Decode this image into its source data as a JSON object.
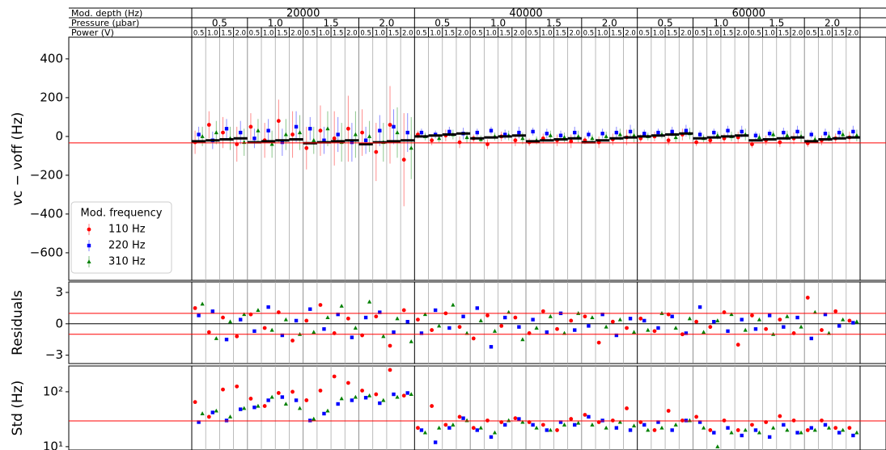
{
  "header": {
    "row_labels": [
      "Mod. depth (Hz)",
      "Pressure (µbar)",
      "Power (V)"
    ],
    "depths": [
      "20000",
      "40000",
      "60000"
    ],
    "pressures": [
      "0.5",
      "1.0",
      "1.5",
      "2.0"
    ],
    "powers": [
      "0.5",
      "1.0",
      "1.5",
      "2.0"
    ]
  },
  "chart_data": [
    {
      "type": "scatter",
      "ylabel": "νc − νoff (Hz)",
      "ylim": [
        -742,
        512
      ],
      "yticks": [
        {
          "value": -600,
          "label": "−600"
        },
        {
          "value": -400,
          "label": "−400"
        },
        {
          "value": -200,
          "label": "−200"
        },
        0,
        200,
        400
      ],
      "ref_line": -33,
      "ref_color": "#ff0000",
      "legend_title": "Mod. frequency",
      "legend": "lower left",
      "series": [
        {
          "name": "110 Hz",
          "color": "#ff0000",
          "marker": "circle",
          "values": [
            -30,
            60,
            20,
            -40,
            50,
            -20,
            80,
            10,
            -60,
            30,
            -10,
            40,
            20,
            -80,
            60,
            -120,
            10,
            -20,
            5,
            -30,
            -10,
            -40,
            0,
            -20,
            -30,
            -10,
            -20,
            -25,
            -20,
            -30,
            -15,
            -5,
            -10,
            0,
            -20,
            10,
            -30,
            -20,
            -10,
            -5,
            -40,
            -20,
            -30,
            -10,
            -35,
            -20,
            -10,
            -5
          ],
          "errors": [
            60,
            70,
            80,
            90,
            70,
            90,
            110,
            120,
            110,
            130,
            140,
            170,
            120,
            150,
            200,
            240,
            20,
            25,
            30,
            30,
            20,
            25,
            25,
            30,
            20,
            25,
            30,
            35,
            20,
            30,
            30,
            40,
            20,
            25,
            25,
            30,
            20,
            20,
            25,
            30,
            20,
            25,
            25,
            30,
            20,
            25,
            25,
            30
          ]
        },
        {
          "name": "220 Hz",
          "color": "#0000ff",
          "marker": "square",
          "values": [
            10,
            -20,
            40,
            20,
            -10,
            30,
            -30,
            50,
            40,
            -20,
            10,
            -30,
            -20,
            30,
            50,
            20,
            20,
            10,
            25,
            15,
            20,
            30,
            10,
            20,
            25,
            15,
            5,
            20,
            10,
            15,
            20,
            25,
            15,
            20,
            25,
            30,
            10,
            20,
            30,
            25,
            5,
            15,
            20,
            25,
            10,
            15,
            20,
            25
          ],
          "errors": [
            40,
            45,
            50,
            60,
            50,
            60,
            70,
            80,
            60,
            70,
            90,
            100,
            70,
            80,
            90,
            100,
            20,
            20,
            25,
            30,
            20,
            20,
            25,
            30,
            20,
            25,
            25,
            30,
            20,
            25,
            30,
            35,
            20,
            20,
            25,
            30,
            20,
            20,
            25,
            30,
            20,
            20,
            25,
            30,
            20,
            25,
            25,
            30
          ]
        },
        {
          "name": "310 Hz",
          "color": "#008000",
          "marker": "triangle",
          "values": [
            0,
            20,
            -10,
            -30,
            30,
            -40,
            10,
            20,
            -20,
            40,
            -30,
            10,
            0,
            -30,
            20,
            -60,
            0,
            -10,
            10,
            -5,
            -15,
            0,
            5,
            -10,
            -20,
            5,
            -5,
            0,
            -10,
            0,
            10,
            5,
            0,
            10,
            -5,
            15,
            -10,
            5,
            0,
            10,
            -5,
            10,
            5,
            0,
            -15,
            0,
            10,
            5
          ],
          "errors": [
            50,
            60,
            60,
            70,
            60,
            70,
            80,
            90,
            70,
            90,
            100,
            120,
            80,
            100,
            130,
            160,
            20,
            20,
            25,
            30,
            20,
            20,
            25,
            30,
            20,
            25,
            25,
            30,
            20,
            25,
            30,
            35,
            20,
            20,
            25,
            30,
            20,
            20,
            25,
            30,
            20,
            20,
            25,
            30,
            20,
            25,
            25,
            30
          ]
        }
      ],
      "fit": [
        -25,
        -20,
        -15,
        -10,
        -30,
        -25,
        -20,
        -15,
        -35,
        -30,
        -25,
        -20,
        -40,
        -30,
        -25,
        -20,
        0,
        5,
        10,
        15,
        -10,
        -5,
        0,
        5,
        -25,
        -20,
        -15,
        -10,
        -30,
        -20,
        -10,
        -5,
        0,
        5,
        10,
        15,
        -10,
        -5,
        0,
        5,
        -20,
        -15,
        -10,
        -5,
        -25,
        -15,
        -10,
        -5
      ]
    },
    {
      "type": "scatter",
      "ylabel": "Residuals",
      "ylim": [
        -3.8,
        4
      ],
      "yticks": [
        {
          "value": -3,
          "label": "−3"
        },
        0,
        3
      ],
      "zero_line": 0,
      "ref_lines": [
        -1,
        1
      ],
      "ref_color": "#ff0000",
      "series": [
        {
          "color": "#ff0000",
          "marker": "circle",
          "values": [
            1.5,
            -0.8,
            0.6,
            -1.2,
            0.9,
            -0.4,
            1.1,
            -1.6,
            0.3,
            1.8,
            -0.9,
            0.5,
            -1.1,
            0.7,
            -2.1,
            1.3,
            0.4,
            -0.6,
            1.0,
            -0.3,
            -1.4,
            0.8,
            -0.2,
            0.6,
            -0.9,
            1.2,
            -0.5,
            0.3,
            0.7,
            -1.8,
            0.2,
            -0.4,
            0.5,
            -0.7,
            0.9,
            -1.0,
            0.2,
            -0.3,
            1.1,
            -2.0,
            0.8,
            -0.5,
            0.4,
            -0.9,
            2.5,
            -0.6,
            1.2,
            0.3
          ]
        },
        {
          "color": "#0000ff",
          "marker": "square",
          "values": [
            0.8,
            1.2,
            -1.5,
            0.4,
            -0.7,
            1.6,
            -1.1,
            0.3,
            1.4,
            -0.5,
            0.9,
            -1.3,
            0.6,
            1.1,
            -0.8,
            0.2,
            -0.9,
            1.3,
            -0.4,
            0.7,
            1.5,
            -2.2,
            0.6,
            -0.3,
            0.4,
            -0.8,
            1.0,
            -0.6,
            -0.2,
            0.9,
            -1.1,
            0.5,
            0.3,
            -0.4,
            0.7,
            -0.9,
            1.6,
            0.2,
            -0.7,
            0.4,
            -0.5,
            0.8,
            -0.3,
            0.6,
            -1.4,
            0.9,
            -0.2,
            0.1
          ]
        },
        {
          "color": "#008000",
          "marker": "triangle",
          "values": [
            1.9,
            -1.4,
            0.2,
            0.9,
            1.3,
            -0.6,
            0.4,
            -1.0,
            -0.8,
            0.6,
            1.7,
            -0.4,
            2.1,
            -1.2,
            0.5,
            -1.7,
            0.9,
            -0.2,
            1.8,
            -0.9,
            0.3,
            -0.7,
            1.1,
            -1.5,
            -0.4,
            0.7,
            -0.9,
            1.0,
            0.6,
            -0.3,
            0.4,
            -0.8,
            -0.6,
            1.0,
            -0.4,
            0.5,
            -0.8,
            0.3,
            0.9,
            -0.6,
            0.4,
            -1.0,
            0.7,
            -0.3,
            1.1,
            -0.9,
            0.4,
            0.2
          ]
        }
      ]
    },
    {
      "type": "scatter",
      "ylabel": "Std (Hz)",
      "log_scale": true,
      "ylim": [
        8.7,
        295
      ],
      "yticks": [
        {
          "value": 10,
          "label": "10¹"
        },
        {
          "value": 100,
          "label": "10²"
        }
      ],
      "ref_line": 29.5,
      "ref_color": "#ff0000",
      "series": [
        {
          "color": "#ff0000",
          "marker": "circle",
          "values": [
            65,
            35,
            110,
            125,
            75,
            55,
            95,
            100,
            70,
            105,
            190,
            145,
            105,
            90,
            250,
            85,
            22,
            55,
            25,
            35,
            22,
            30,
            28,
            33,
            28,
            25,
            20,
            32,
            38,
            28,
            30,
            50,
            28,
            20,
            45,
            30,
            35,
            20,
            30,
            20,
            25,
            28,
            36,
            30,
            20,
            30,
            22,
            22
          ]
        },
        {
          "color": "#0000ff",
          "marker": "square",
          "values": [
            28,
            42,
            30,
            48,
            52,
            70,
            80,
            70,
            30,
            40,
            60,
            70,
            78,
            62,
            90,
            95,
            20,
            12,
            22,
            33,
            20,
            15,
            25,
            32,
            25,
            20,
            28,
            25,
            35,
            30,
            22,
            20,
            25,
            28,
            20,
            30,
            28,
            18,
            22,
            16,
            20,
            15,
            25,
            18,
            22,
            25,
            18,
            16
          ]
        },
        {
          "color": "#008000",
          "marker": "triangle",
          "values": [
            40,
            45,
            35,
            50,
            55,
            80,
            60,
            50,
            32,
            45,
            75,
            80,
            85,
            70,
            80,
            90,
            18,
            22,
            25,
            30,
            22,
            18,
            30,
            28,
            22,
            20,
            25,
            27,
            25,
            22,
            28,
            24,
            20,
            22,
            25,
            30,
            22,
            10,
            18,
            20,
            18,
            22,
            20,
            18,
            20,
            22,
            20,
            18
          ]
        }
      ]
    }
  ]
}
